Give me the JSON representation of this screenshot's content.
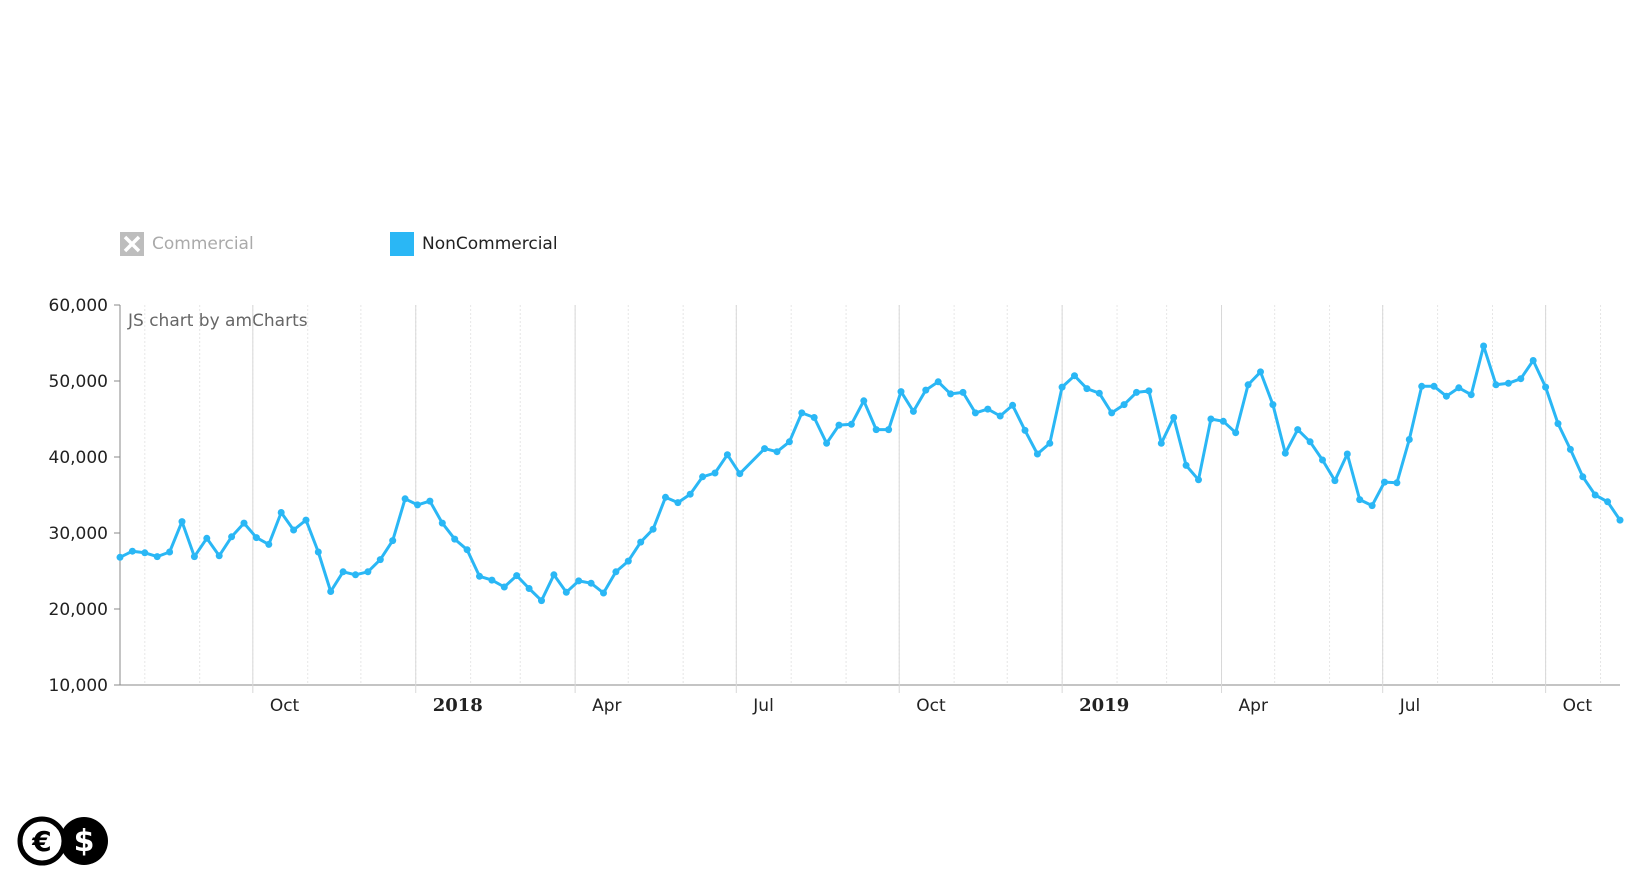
{
  "chart_data": {
    "type": "line",
    "credit": "JS chart by amCharts",
    "legend": [
      {
        "name": "Commercial",
        "color": "#bdbdbd",
        "hidden": true
      },
      {
        "name": "NonCommercial",
        "color": "#2ab7f5",
        "hidden": false
      }
    ],
    "ylim": [
      10000,
      60000
    ],
    "yticks": [
      "10,000",
      "20,000",
      "30,000",
      "40,000",
      "50,000",
      "60,000"
    ],
    "xlim": [
      "2017-07-18",
      "2019-11-12"
    ],
    "xticks": [
      {
        "date": "2017-10-01",
        "label": "Oct",
        "bold": false
      },
      {
        "date": "2018-01-01",
        "label": "2018",
        "bold": true
      },
      {
        "date": "2018-04-01",
        "label": "Apr",
        "bold": false
      },
      {
        "date": "2018-07-01",
        "label": "Jul",
        "bold": false
      },
      {
        "date": "2018-10-01",
        "label": "Oct",
        "bold": false
      },
      {
        "date": "2019-01-01",
        "label": "2019",
        "bold": true
      },
      {
        "date": "2019-04-01",
        "label": "Apr",
        "bold": false
      },
      {
        "date": "2019-07-01",
        "label": "Jul",
        "bold": false
      },
      {
        "date": "2019-10-01",
        "label": "Oct",
        "bold": false
      }
    ],
    "grid": true,
    "series": [
      {
        "name": "NonCommercial",
        "color": "#2ab7f5",
        "start": "2017-07-18",
        "interval_days": 7,
        "values": [
          26800,
          27600,
          27400,
          26900,
          27500,
          31500,
          26900,
          29300,
          27000,
          29500,
          31300,
          29400,
          28500,
          32700,
          30400,
          31700,
          27500,
          22300,
          24900,
          24500,
          24900,
          26500,
          29000,
          34500,
          33700,
          34200,
          31300,
          29200,
          27800,
          24300,
          23800,
          22900,
          24400,
          22700,
          21100,
          24500,
          22200,
          23700,
          23400,
          22100,
          24900,
          26300,
          28800,
          30500,
          34700,
          34000,
          35100,
          37400,
          37900,
          40300,
          37800,
          null,
          41100,
          40700,
          42000,
          45800,
          45200,
          41800,
          44200,
          44300,
          47400,
          43600,
          43600,
          48600,
          46000,
          48800,
          49900,
          48300,
          48500,
          45800,
          46300,
          45400,
          46800,
          43500,
          40400,
          41800,
          49200,
          50700,
          49000,
          48400,
          45800,
          46900,
          48500,
          48700,
          41800,
          45200,
          38900,
          37000,
          45000,
          44700,
          43200,
          49500,
          51200,
          46900,
          40500,
          43600,
          42000,
          39600,
          36900,
          40400,
          34400,
          33600,
          36700,
          36600,
          42300,
          49300,
          49300,
          48000,
          49100,
          48200,
          54600,
          49500,
          49700,
          50300,
          52700,
          49200,
          44400,
          41000,
          37400,
          35000,
          34100,
          31700
        ]
      }
    ]
  },
  "logo": {
    "euro_symbol": "€",
    "dollar_symbol": "$"
  }
}
